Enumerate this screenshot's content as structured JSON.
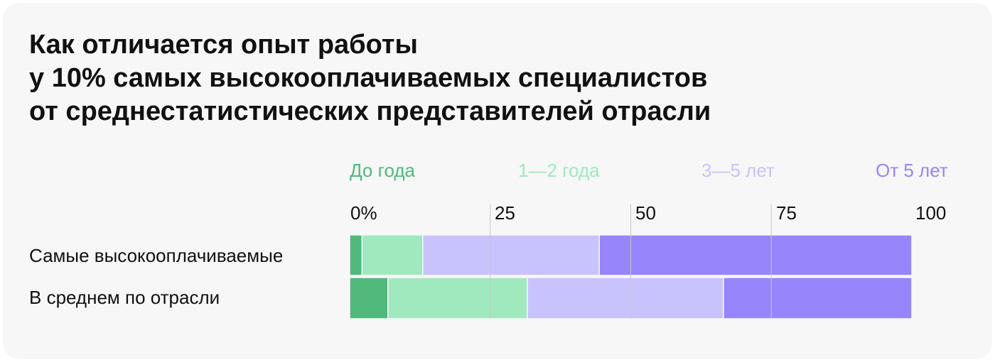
{
  "title_lines": [
    "Как отличается опыт работы",
    "у 10% самых высокооплачиваемых специалистов",
    "от среднестатистических представителей отрасли"
  ],
  "colors": {
    "background": "#f7f7f7",
    "series": [
      "#52b97c",
      "#a0e9bf",
      "#c9c3fd",
      "#9785fc"
    ],
    "gridline": "#c8c8c8"
  },
  "chart_data": {
    "type": "bar",
    "orientation": "horizontal",
    "stacked": true,
    "categories": [
      "Самые высокооплачиваемые",
      "В среднем по отрасли"
    ],
    "series": [
      {
        "name": "До года",
        "values": [
          2.2,
          6.8
        ]
      },
      {
        "name": "1—2 года",
        "values": [
          10.8,
          24.8
        ]
      },
      {
        "name": "3—5 лет",
        "values": [
          31.4,
          34.9
        ]
      },
      {
        "name": "От 5 лет",
        "values": [
          55.6,
          33.5
        ]
      }
    ],
    "x_ticks": [
      "0%",
      "25",
      "50",
      "75",
      "100"
    ],
    "xlim": [
      0,
      100
    ],
    "grid": true,
    "legend_position": "top"
  }
}
